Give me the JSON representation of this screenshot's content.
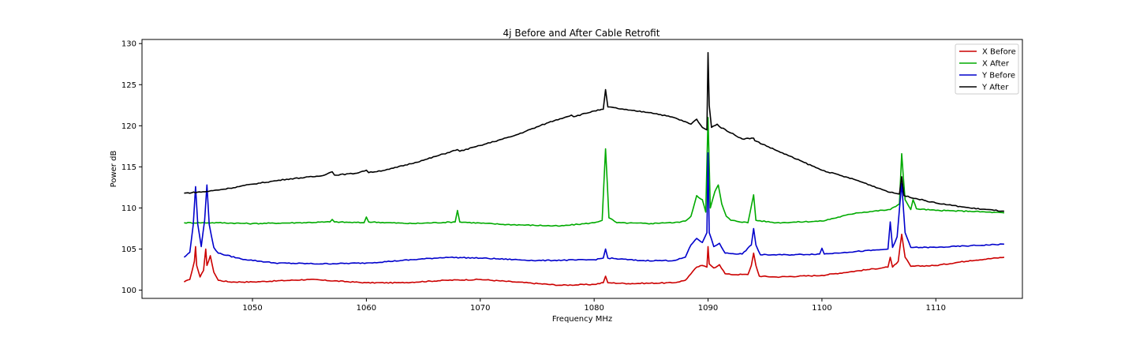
{
  "chart_data": {
    "type": "line",
    "title": "4j Before and After Cable Retrofit",
    "xlabel": "Frequency MHz",
    "ylabel": "Power dB",
    "xlim": [
      1040.3,
      1117.6
    ],
    "ylim": [
      99.0,
      130.5
    ],
    "xticks": [
      1050,
      1060,
      1070,
      1080,
      1090,
      1100,
      1110
    ],
    "xtick_labels": [
      "1050",
      "1060",
      "1070",
      "1080",
      "1090",
      "1100",
      "1110"
    ],
    "yticks": [
      100,
      105,
      110,
      115,
      120,
      125,
      130
    ],
    "ytick_labels": [
      "100",
      "105",
      "110",
      "115",
      "120",
      "125",
      "130"
    ],
    "grid": false,
    "legend_position": "top-right",
    "series": [
      {
        "name": "X Before",
        "color": "#cc0000",
        "points": [
          [
            1044,
            101.0
          ],
          [
            1044.5,
            101.3
          ],
          [
            1044.9,
            103.5
          ],
          [
            1045.0,
            105.3
          ],
          [
            1045.1,
            103.0
          ],
          [
            1045.4,
            101.6
          ],
          [
            1045.7,
            102.4
          ],
          [
            1045.9,
            105.0
          ],
          [
            1046.0,
            103.0
          ],
          [
            1046.3,
            104.2
          ],
          [
            1046.6,
            102.2
          ],
          [
            1047,
            101.2
          ],
          [
            1048,
            101.0
          ],
          [
            1050,
            101.0
          ],
          [
            1055,
            101.3
          ],
          [
            1060,
            100.9
          ],
          [
            1063,
            100.9
          ],
          [
            1067,
            101.2
          ],
          [
            1070,
            101.3
          ],
          [
            1073,
            101.0
          ],
          [
            1077,
            100.6
          ],
          [
            1080,
            100.7
          ],
          [
            1080.8,
            100.9
          ],
          [
            1081.0,
            101.7
          ],
          [
            1081.2,
            100.9
          ],
          [
            1083,
            100.8
          ],
          [
            1087,
            100.9
          ],
          [
            1088,
            101.2
          ],
          [
            1088.5,
            102.0
          ],
          [
            1089,
            102.8
          ],
          [
            1089.5,
            103.0
          ],
          [
            1089.9,
            102.8
          ],
          [
            1090.0,
            105.3
          ],
          [
            1090.1,
            103.2
          ],
          [
            1090.5,
            102.7
          ],
          [
            1091,
            103.1
          ],
          [
            1091.5,
            102.0
          ],
          [
            1092,
            101.9
          ],
          [
            1093.5,
            101.9
          ],
          [
            1093.8,
            103.0
          ],
          [
            1094.0,
            104.5
          ],
          [
            1094.2,
            103.0
          ],
          [
            1094.5,
            101.7
          ],
          [
            1096,
            101.6
          ],
          [
            1100,
            101.8
          ],
          [
            1104,
            102.5
          ],
          [
            1105.8,
            102.8
          ],
          [
            1106.0,
            104.0
          ],
          [
            1106.2,
            102.8
          ],
          [
            1106.7,
            103.5
          ],
          [
            1107.0,
            106.8
          ],
          [
            1107.3,
            104.0
          ],
          [
            1107.8,
            102.9
          ],
          [
            1110,
            103.0
          ],
          [
            1113,
            103.6
          ],
          [
            1116,
            104.0
          ]
        ]
      },
      {
        "name": "X After",
        "color": "#00aa00",
        "points": [
          [
            1044,
            108.2
          ],
          [
            1047,
            108.2
          ],
          [
            1050,
            108.1
          ],
          [
            1054,
            108.2
          ],
          [
            1056.8,
            108.3
          ],
          [
            1057.0,
            108.6
          ],
          [
            1057.2,
            108.3
          ],
          [
            1059.8,
            108.2
          ],
          [
            1060.0,
            108.9
          ],
          [
            1060.2,
            108.3
          ],
          [
            1064,
            108.1
          ],
          [
            1067.8,
            108.3
          ],
          [
            1068.0,
            109.7
          ],
          [
            1068.2,
            108.3
          ],
          [
            1072,
            108.0
          ],
          [
            1077,
            107.8
          ],
          [
            1080,
            108.2
          ],
          [
            1080.7,
            108.5
          ],
          [
            1081.0,
            117.2
          ],
          [
            1081.3,
            108.8
          ],
          [
            1082,
            108.2
          ],
          [
            1085,
            108.1
          ],
          [
            1086,
            108.2
          ],
          [
            1087,
            108.2
          ],
          [
            1088,
            108.4
          ],
          [
            1088.5,
            109.0
          ],
          [
            1089,
            111.5
          ],
          [
            1089.5,
            111.0
          ],
          [
            1089.8,
            109.5
          ],
          [
            1090.0,
            121.0
          ],
          [
            1090.2,
            110.0
          ],
          [
            1090.6,
            112.0
          ],
          [
            1090.9,
            112.8
          ],
          [
            1091.2,
            110.5
          ],
          [
            1091.6,
            109.0
          ],
          [
            1092,
            108.5
          ],
          [
            1093.5,
            108.2
          ],
          [
            1094.0,
            111.6
          ],
          [
            1094.2,
            108.5
          ],
          [
            1096,
            108.2
          ],
          [
            1100,
            108.4
          ],
          [
            1103,
            109.4
          ],
          [
            1106,
            109.8
          ],
          [
            1106.8,
            110.5
          ],
          [
            1107.0,
            116.6
          ],
          [
            1107.3,
            111.0
          ],
          [
            1107.8,
            109.8
          ],
          [
            1108.0,
            111.0
          ],
          [
            1108.3,
            109.9
          ],
          [
            1110,
            109.7
          ],
          [
            1113,
            109.6
          ],
          [
            1116,
            109.4
          ]
        ]
      },
      {
        "name": "Y Before",
        "color": "#0000cc",
        "points": [
          [
            1044,
            104.0
          ],
          [
            1044.5,
            104.6
          ],
          [
            1044.8,
            108.0
          ],
          [
            1045.0,
            112.6
          ],
          [
            1045.2,
            108.0
          ],
          [
            1045.5,
            105.3
          ],
          [
            1045.8,
            108.5
          ],
          [
            1046.0,
            112.8
          ],
          [
            1046.2,
            108.0
          ],
          [
            1046.6,
            105.2
          ],
          [
            1047,
            104.5
          ],
          [
            1049,
            103.8
          ],
          [
            1052,
            103.3
          ],
          [
            1056,
            103.2
          ],
          [
            1060,
            103.3
          ],
          [
            1063,
            103.6
          ],
          [
            1067,
            104.0
          ],
          [
            1070,
            103.9
          ],
          [
            1075,
            103.6
          ],
          [
            1080,
            103.7
          ],
          [
            1080.8,
            103.9
          ],
          [
            1081.0,
            105.0
          ],
          [
            1081.2,
            103.9
          ],
          [
            1084,
            103.6
          ],
          [
            1087,
            103.6
          ],
          [
            1088,
            104.0
          ],
          [
            1088.5,
            105.5
          ],
          [
            1089,
            106.3
          ],
          [
            1089.5,
            105.8
          ],
          [
            1089.9,
            107.0
          ],
          [
            1090.0,
            116.7
          ],
          [
            1090.1,
            107.0
          ],
          [
            1090.5,
            105.3
          ],
          [
            1091,
            105.7
          ],
          [
            1091.5,
            104.5
          ],
          [
            1093,
            104.4
          ],
          [
            1093.8,
            105.5
          ],
          [
            1094.0,
            107.5
          ],
          [
            1094.2,
            105.5
          ],
          [
            1094.6,
            104.3
          ],
          [
            1097,
            104.3
          ],
          [
            1099.8,
            104.4
          ],
          [
            1100.0,
            105.1
          ],
          [
            1100.2,
            104.4
          ],
          [
            1102,
            104.6
          ],
          [
            1105,
            104.9
          ],
          [
            1105.8,
            105.0
          ],
          [
            1106.0,
            108.3
          ],
          [
            1106.2,
            105.2
          ],
          [
            1106.6,
            106.5
          ],
          [
            1107.0,
            113.0
          ],
          [
            1107.3,
            107.0
          ],
          [
            1107.8,
            105.2
          ],
          [
            1110,
            105.2
          ],
          [
            1113,
            105.4
          ],
          [
            1116,
            105.6
          ]
        ]
      },
      {
        "name": "Y After",
        "color": "#000000",
        "points": [
          [
            1044,
            111.8
          ],
          [
            1046,
            112.0
          ],
          [
            1048,
            112.4
          ],
          [
            1050,
            112.9
          ],
          [
            1053,
            113.5
          ],
          [
            1056,
            113.9
          ],
          [
            1057.0,
            114.4
          ],
          [
            1057.2,
            114.0
          ],
          [
            1059,
            114.2
          ],
          [
            1060.0,
            114.6
          ],
          [
            1060.2,
            114.3
          ],
          [
            1062,
            114.7
          ],
          [
            1065,
            115.8
          ],
          [
            1068.0,
            117.1
          ],
          [
            1068.2,
            116.9
          ],
          [
            1070,
            117.6
          ],
          [
            1073,
            118.8
          ],
          [
            1076,
            120.4
          ],
          [
            1078.0,
            121.3
          ],
          [
            1078.2,
            121.1
          ],
          [
            1080,
            121.8
          ],
          [
            1080.8,
            122.0
          ],
          [
            1081.0,
            124.4
          ],
          [
            1081.2,
            122.3
          ],
          [
            1083,
            121.9
          ],
          [
            1085,
            121.6
          ],
          [
            1087,
            121.0
          ],
          [
            1088.5,
            120.2
          ],
          [
            1089,
            120.8
          ],
          [
            1089.5,
            119.8
          ],
          [
            1089.9,
            119.5
          ],
          [
            1090.0,
            128.9
          ],
          [
            1090.1,
            122.5
          ],
          [
            1090.3,
            119.8
          ],
          [
            1090.8,
            120.2
          ],
          [
            1091,
            119.9
          ],
          [
            1093,
            118.4
          ],
          [
            1094.0,
            118.5
          ],
          [
            1094.1,
            118.2
          ],
          [
            1096,
            117.0
          ],
          [
            1100,
            114.6
          ],
          [
            1103,
            113.4
          ],
          [
            1106,
            111.9
          ],
          [
            1106.8,
            111.7
          ],
          [
            1107.0,
            113.8
          ],
          [
            1107.2,
            111.5
          ],
          [
            1110,
            110.6
          ],
          [
            1113,
            110.0
          ],
          [
            1116,
            109.6
          ]
        ]
      }
    ]
  }
}
